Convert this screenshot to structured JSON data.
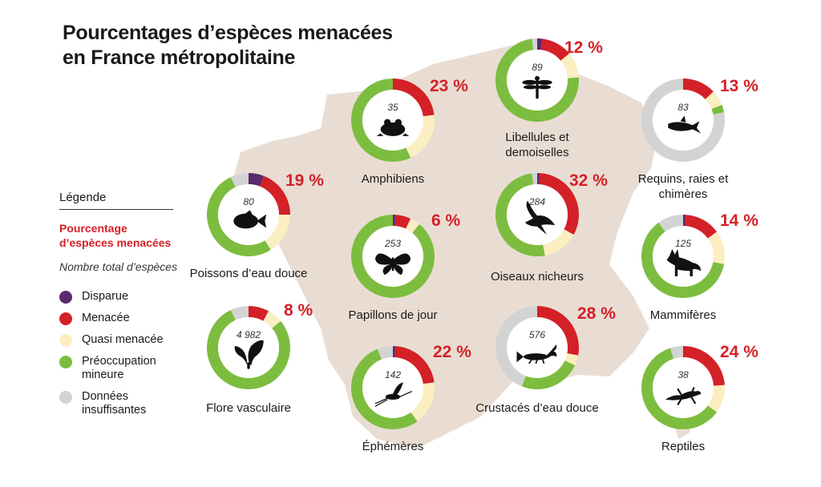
{
  "title": [
    "Pourcentages d’espèces menacées",
    "en France métropolitaine"
  ],
  "colors": {
    "extinct": "#5b2a6e",
    "threatened": "#d42027",
    "near_threatened": "#fbeec0",
    "least_concern": "#7cbd3f",
    "data_deficient": "#d3d3d3",
    "map": "#e9ddd3",
    "accent": "#d42027"
  },
  "legend": {
    "title": "Légende",
    "pct_label": "Pourcentage d’espèces menacées",
    "count_label": "Nombre total d’espèces",
    "items": [
      {
        "label": "Disparue",
        "color": "#5b2a6e"
      },
      {
        "label": "Menacée",
        "color": "#d42027"
      },
      {
        "label": "Quasi menacée",
        "color": "#fbeec0"
      },
      {
        "label": "Préoccupation mineure",
        "color": "#7cbd3f"
      },
      {
        "label": "Données insuffisantes",
        "color": "#d3d3d3"
      }
    ]
  },
  "chart_data": {
    "type": "pie",
    "title": "Pourcentages d’espèces menacées en France métropolitaine",
    "categories": [
      "Disparue",
      "Menacée",
      "Quasi menacée",
      "Préoccupation mineure",
      "Données insuffisantes"
    ],
    "groups": [
      {
        "name": "Libellules et demoiselles",
        "total": "89",
        "pct_label": "12 %",
        "icon": "dragonfly-icon",
        "slices": [
          2,
          12,
          10,
          74,
          2
        ]
      },
      {
        "name": "Amphibiens",
        "total": "35",
        "pct_label": "23 %",
        "icon": "frog-icon",
        "slices": [
          0,
          23,
          20,
          57,
          0
        ]
      },
      {
        "name": "Requins, raies et chimères",
        "total": "83",
        "pct_label": "13 %",
        "icon": "shark-icon",
        "slices": [
          0,
          13,
          6,
          3,
          78
        ]
      },
      {
        "name": "Poissons d’eau douce",
        "total": "80",
        "pct_label": "19 %",
        "icon": "fish-icon",
        "slices": [
          6,
          19,
          16,
          52,
          7
        ]
      },
      {
        "name": "Papillons de jour",
        "total": "253",
        "pct_label": "6 %",
        "icon": "butterfly-icon",
        "slices": [
          1,
          6,
          4,
          89,
          0
        ]
      },
      {
        "name": "Oiseaux nicheurs",
        "total": "284",
        "pct_label": "32 %",
        "icon": "bird-icon",
        "slices": [
          1,
          32,
          14,
          51,
          2
        ]
      },
      {
        "name": "Mammifères",
        "total": "125",
        "pct_label": "14 %",
        "icon": "fox-icon",
        "slices": [
          1,
          14,
          13,
          62,
          10
        ]
      },
      {
        "name": "Flore vasculaire",
        "total": "4 982",
        "pct_label": "8 %",
        "icon": "leaf-icon",
        "slices": [
          0,
          8,
          6,
          79,
          7
        ]
      },
      {
        "name": "Éphémères",
        "total": "142",
        "pct_label": "22 %",
        "icon": "mayfly-icon",
        "slices": [
          1,
          22,
          17,
          54,
          6
        ]
      },
      {
        "name": "Crustacés d’eau douce",
        "total": "576",
        "pct_label": "28 %",
        "icon": "crayfish-icon",
        "slices": [
          0,
          28,
          4,
          24,
          44
        ]
      },
      {
        "name": "Reptiles",
        "total": "38",
        "pct_label": "24 %",
        "icon": "lizard-icon",
        "slices": [
          0,
          24,
          11,
          60,
          5
        ]
      }
    ]
  }
}
